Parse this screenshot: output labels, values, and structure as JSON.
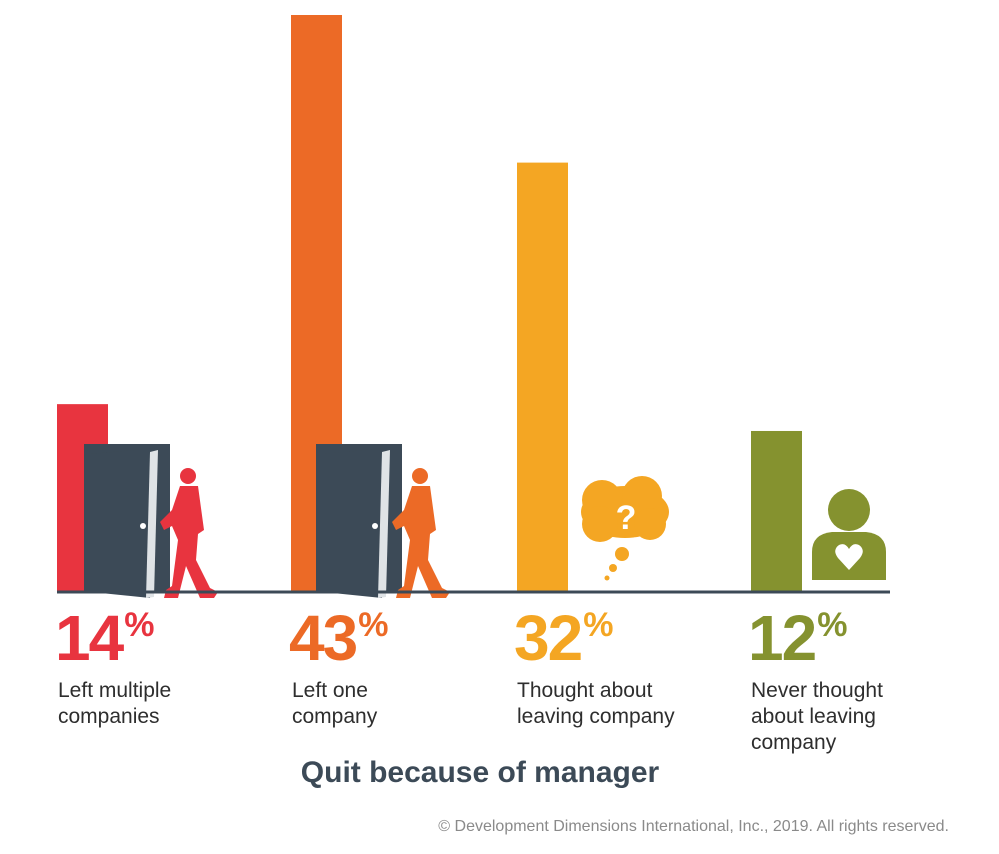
{
  "chart_data": {
    "type": "bar",
    "categories": [
      "Left multiple companies",
      "Left one company",
      "Thought about leaving company",
      "Never thought about leaving company"
    ],
    "values": [
      14,
      43,
      32,
      12
    ],
    "unit": "%",
    "colors": [
      "#e8343f",
      "#ec6a26",
      "#f4a623",
      "#85922f"
    ],
    "title": "Quit because of manager",
    "items": [
      {
        "value": "14",
        "unit": "%",
        "label_lines": [
          "Left multiple",
          "companies"
        ],
        "color": "#e8343f",
        "icon": "door-walking-person-icon"
      },
      {
        "value": "43",
        "unit": "%",
        "label_lines": [
          "Left one",
          "company"
        ],
        "color": "#ec6a26",
        "icon": "door-walking-person-icon"
      },
      {
        "value": "32",
        "unit": "%",
        "label_lines": [
          "Thought about",
          "leaving company"
        ],
        "color": "#f4a623",
        "icon": "question-thought-bubble-icon"
      },
      {
        "value": "12",
        "unit": "%",
        "label_lines": [
          "Never thought",
          "about leaving",
          "company"
        ],
        "color": "#85922f",
        "icon": "person-heart-icon"
      }
    ]
  },
  "door_color": "#3c4a57",
  "baseline_color": "#3c4a57",
  "footer": "© Development Dimensions International, Inc., 2019. All rights reserved."
}
